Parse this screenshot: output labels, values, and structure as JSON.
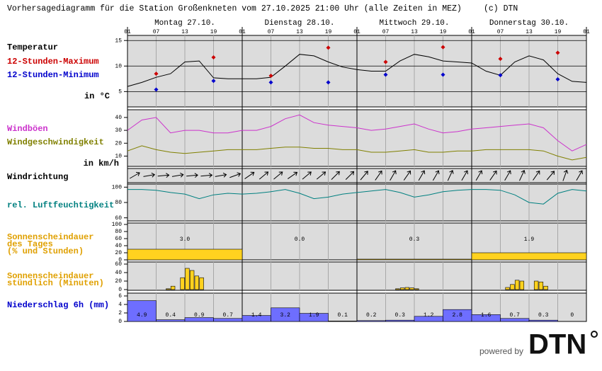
{
  "title": "Vorhersagediagramm für die Station Großenkneten vom 27.10.2025 21:00 Uhr (alle Zeiten in MEZ)",
  "copyright": "(c) DTN",
  "x_axis": {
    "xlim": [
      0,
      96
    ],
    "xticks": [
      {
        "value": 0,
        "label": "01"
      },
      {
        "value": 6,
        "label": "07"
      },
      {
        "value": 12,
        "label": "13"
      },
      {
        "value": 18,
        "label": "19"
      },
      {
        "value": 24,
        "label": "01"
      },
      {
        "value": 30,
        "label": "07"
      },
      {
        "value": 36,
        "label": "13"
      },
      {
        "value": 42,
        "label": "19"
      },
      {
        "value": 48,
        "label": "01"
      },
      {
        "value": 54,
        "label": "07"
      },
      {
        "value": 60,
        "label": "13"
      },
      {
        "value": 66,
        "label": "19"
      },
      {
        "value": 72,
        "label": "01"
      },
      {
        "value": 78,
        "label": "07"
      },
      {
        "value": 84,
        "label": "13"
      },
      {
        "value": 90,
        "label": "19"
      },
      {
        "value": 96,
        "label": "01"
      }
    ],
    "day_ticks": [
      0,
      24,
      48,
      72,
      96
    ],
    "days": [
      "Montag 27.10.",
      "Dienstag 28.10.",
      "Mittwoch 29.10.",
      "Donnerstag 30.10."
    ]
  },
  "chart_data": [
    {
      "type": "line",
      "title": "Temperatur",
      "unit": "in °C",
      "ylim": [
        2,
        16
      ],
      "yticks": [
        5,
        10,
        15
      ],
      "grid": true,
      "x": [
        0,
        3,
        6,
        9,
        12,
        15,
        18,
        21,
        24,
        27,
        30,
        33,
        36,
        39,
        42,
        45,
        48,
        51,
        54,
        57,
        60,
        63,
        66,
        69,
        72,
        75,
        78,
        81,
        84,
        87,
        90,
        93,
        96
      ],
      "series": [
        {
          "color": "#000000",
          "values": [
            6.0,
            6.8,
            7.8,
            8.5,
            10.8,
            11.0,
            7.7,
            7.5,
            7.5,
            7.5,
            7.8,
            10.0,
            12.3,
            12.0,
            10.8,
            9.8,
            9.3,
            9.0,
            9.0,
            11.0,
            12.3,
            11.8,
            11.0,
            10.8,
            10.6,
            9.0,
            8.2,
            10.8,
            12.0,
            11.2,
            8.5,
            7.0,
            6.8
          ]
        },
        {
          "name": "12-Stunden-Maximum",
          "type": "scatter",
          "color": "#cc0000",
          "x": [
            6,
            18,
            30,
            42,
            54,
            66,
            78,
            90
          ],
          "values": [
            8.5,
            11.7,
            8.1,
            13.6,
            10.8,
            13.7,
            11.4,
            12.6
          ]
        },
        {
          "name": "12-Stunden-Minimum",
          "type": "scatter",
          "color": "#0000cc",
          "x": [
            6,
            18,
            30,
            42,
            54,
            66,
            78,
            90
          ],
          "values": [
            5.4,
            7.1,
            6.8,
            6.8,
            8.3,
            8.3,
            8.2,
            7.4
          ]
        }
      ]
    },
    {
      "type": "line",
      "unit": "in km/h",
      "ylim": [
        2,
        46
      ],
      "yticks": [
        10,
        20,
        30,
        40
      ],
      "grid": false,
      "x": [
        0,
        3,
        6,
        9,
        12,
        15,
        18,
        21,
        24,
        27,
        30,
        33,
        36,
        39,
        42,
        45,
        48,
        51,
        54,
        57,
        60,
        63,
        66,
        69,
        72,
        75,
        78,
        81,
        84,
        87,
        90,
        93,
        96
      ],
      "series": [
        {
          "name": "Windböen",
          "color": "#cc33cc",
          "values": [
            30,
            38,
            40,
            28,
            30,
            30,
            28,
            28,
            30,
            30,
            33,
            39,
            42,
            36,
            34,
            33,
            32,
            30,
            31,
            33,
            35,
            31,
            28,
            29,
            31,
            32,
            33,
            34,
            35,
            32,
            22,
            14,
            19
          ]
        },
        {
          "name": "Windgeschwindigkeit",
          "color": "#808000",
          "values": [
            14,
            18,
            15,
            13,
            12,
            13,
            14,
            15,
            15,
            15,
            16,
            17,
            17,
            16,
            16,
            15,
            15,
            13,
            13,
            14,
            15,
            13,
            13,
            14,
            14,
            15,
            15,
            15,
            15,
            14,
            10,
            7,
            9
          ]
        }
      ]
    },
    {
      "type": "arrows",
      "title": "Windrichtung",
      "x": [
        1.5,
        4.5,
        7.5,
        10.5,
        13.5,
        16.5,
        19.5,
        22.5,
        25.5,
        28.5,
        31.5,
        34.5,
        37.5,
        40.5,
        43.5,
        46.5,
        49.5,
        52.5,
        55.5,
        58.5,
        61.5,
        64.5,
        67.5,
        70.5,
        73.5,
        76.5,
        79.5,
        82.5,
        85.5,
        88.5,
        91.5,
        94.5
      ],
      "values": [
        60,
        80,
        85,
        80,
        85,
        85,
        80,
        70,
        55,
        50,
        50,
        55,
        50,
        50,
        45,
        45,
        40,
        35,
        30,
        35,
        30,
        30,
        25,
        30,
        30,
        35,
        30,
        25,
        35,
        40,
        20,
        30
      ]
    },
    {
      "type": "line",
      "title": "rel. Luftfeuchtigkeit",
      "color": "#008080",
      "ylim": [
        56,
        104
      ],
      "yticks": [
        60,
        80,
        100
      ],
      "grid": false,
      "x": [
        0,
        3,
        6,
        9,
        12,
        15,
        18,
        21,
        24,
        27,
        30,
        33,
        36,
        39,
        42,
        45,
        48,
        51,
        54,
        57,
        60,
        63,
        66,
        69,
        72,
        75,
        78,
        81,
        84,
        87,
        90,
        93,
        96
      ],
      "series": [
        {
          "color": "#008080",
          "values": [
            97,
            97,
            96,
            93,
            91,
            85,
            90,
            92,
            91,
            92,
            94,
            97,
            92,
            85,
            87,
            91,
            93,
            95,
            97,
            93,
            87,
            90,
            94,
            96,
            97,
            97,
            96,
            90,
            80,
            78,
            92,
            97,
            95
          ]
        }
      ]
    },
    {
      "type": "histogram",
      "title": [
        "Sonnenscheindauer",
        "des Tages",
        "(% und Stunden)"
      ],
      "color": "#e0a000",
      "ylim": [
        0,
        100
      ],
      "yticks": [
        0,
        20,
        40,
        60,
        80,
        100
      ],
      "bins": [
        0,
        24,
        48,
        72,
        96
      ],
      "series": [
        {
          "color": "#ffd21f",
          "values": [
            30,
            0,
            2,
            20
          ]
        }
      ],
      "hours": {
        "values": [
          3,
          0,
          0.3,
          1.9
        ],
        "value_labels": [
          "3.0",
          "0.0",
          "0.3",
          "1.9"
        ]
      }
    },
    {
      "type": "bar",
      "title": [
        "Sonnenscheindauer",
        "stündlich (Minuten)"
      ],
      "color": "#e0a000",
      "ylim": [
        0,
        60
      ],
      "yticks": [
        0,
        20,
        40,
        60
      ],
      "series": [
        {
          "color": "#ffd21f",
          "x": [
            8,
            9,
            11,
            12,
            13,
            14,
            15,
            56,
            57,
            58,
            59,
            60,
            79,
            80,
            81,
            82,
            85,
            86,
            87
          ],
          "values": [
            2,
            8,
            28,
            50,
            45,
            32,
            28,
            2,
            4,
            5,
            4,
            2,
            5,
            12,
            22,
            20,
            20,
            18,
            8
          ]
        }
      ]
    },
    {
      "type": "histogram",
      "title": "Niederschlag 6h (mm)",
      "color": "#0000cc",
      "ylim": [
        0,
        6.5
      ],
      "yticks": [
        0,
        2,
        4,
        6
      ],
      "bins": [
        0,
        6,
        12,
        18,
        24,
        30,
        36,
        42,
        48,
        54,
        60,
        66,
        72,
        78,
        84,
        90,
        96
      ],
      "series": [
        {
          "color": "#6e6eff",
          "show_values": true,
          "values": [
            4.9,
            0.4,
            0.9,
            0.7,
            1.4,
            3.2,
            1.9,
            0.1,
            0.2,
            0.3,
            1.2,
            2.8,
            1.6,
            0.7,
            0.3,
            0
          ]
        }
      ]
    }
  ],
  "footer": {
    "text": "powered by",
    "logo": "DTN"
  }
}
